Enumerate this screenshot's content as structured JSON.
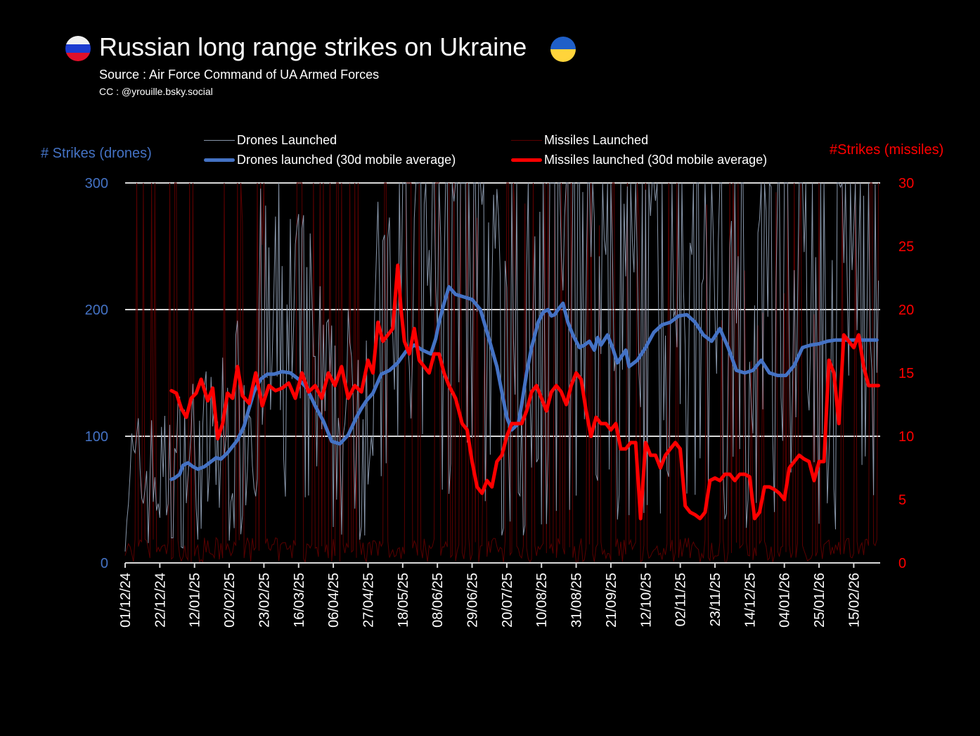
{
  "header": {
    "title": "Russian long range strikes on Ukraine",
    "subtitle": "Source : Air Force Command of UA Armed Forces",
    "credit": "CC : @yrouille.bsky.social",
    "left_flag": "russia-flag-icon",
    "right_flag": "ukraine-flag-icon"
  },
  "chart_data": {
    "type": "line",
    "title": "Russian long range strikes on Ukraine",
    "xlabel": "",
    "ylabel": "# Strikes (drones)",
    "y2label": "#Strikes (missiles)",
    "ylim": [
      0,
      300
    ],
    "y2lim": [
      0,
      30
    ],
    "yticks": [
      "0",
      "100",
      "200",
      "300"
    ],
    "y2ticks": [
      "0",
      "5",
      "10",
      "15",
      "20",
      "25",
      "30"
    ],
    "grid": true,
    "legend_position": "top",
    "colors": {
      "drones_ma": "#4472c4",
      "missiles_ma": "#ff0000",
      "drones_daily": "#8896aa",
      "missiles_daily": "#5a0000",
      "left_axis": "#4472c4",
      "right_axis": "#ff0000"
    },
    "x_tick_labels": [
      "01/12/24",
      "22/12/24",
      "12/01/25",
      "02/02/25",
      "23/02/25",
      "16/03/25",
      "06/04/25",
      "27/04/25",
      "18/05/25",
      "08/06/25",
      "29/06/25",
      "20/07/25",
      "10/08/25",
      "31/08/25",
      "21/09/25",
      "12/10/25",
      "02/11/25",
      "23/11/25",
      "14/12/25",
      "04/01/26",
      "25/01/26",
      "15/02/26"
    ],
    "x_tick_days": [
      0,
      21,
      42,
      63,
      84,
      105,
      126,
      147,
      168,
      189,
      210,
      231,
      252,
      273,
      294,
      315,
      336,
      357,
      378,
      399,
      420,
      441
    ],
    "x_range_days": [
      0,
      457
    ],
    "legend": [
      {
        "name": "Drones Launched",
        "style": "thin"
      },
      {
        "name": "Drones launched (30d mobile average)",
        "style": "thick"
      },
      {
        "name": "Missiles Launched",
        "style": "thin"
      },
      {
        "name": "Missiles launched (30d mobile average)",
        "style": "thick"
      }
    ],
    "series": [
      {
        "name": "Drones launched (30d mobile average)",
        "axis": "left",
        "x": [
          28,
          30,
          33,
          35,
          38,
          41,
          44,
          48,
          52,
          55,
          58,
          62,
          65,
          68,
          72,
          75,
          78,
          82,
          86,
          90,
          95,
          100,
          105,
          110,
          115,
          120,
          125,
          130,
          135,
          140,
          143,
          146,
          150,
          155,
          160,
          165,
          170,
          175,
          180,
          185,
          188,
          190,
          193,
          196,
          200,
          205,
          210,
          215,
          220,
          225,
          228,
          231,
          234,
          238,
          240,
          243,
          246,
          250,
          253,
          256,
          258,
          260,
          262,
          265,
          268,
          271,
          275,
          278,
          281,
          284,
          286,
          288,
          292,
          295,
          298,
          300,
          303,
          305,
          310,
          315,
          320,
          325,
          330,
          335,
          340,
          345,
          350,
          355,
          360,
          365,
          370,
          375,
          380,
          385,
          390,
          395,
          400,
          405,
          410,
          415,
          420,
          425,
          430,
          435,
          440,
          445,
          450,
          455
        ],
        "values": [
          66,
          67,
          70,
          77,
          79,
          76,
          74,
          76,
          80,
          83,
          82,
          87,
          92,
          97,
          108,
          122,
          135,
          145,
          149,
          149,
          151,
          150,
          145,
          138,
          124,
          112,
          96,
          94,
          101,
          115,
          122,
          128,
          134,
          149,
          152,
          158,
          167,
          172,
          168,
          165,
          177,
          190,
          205,
          218,
          212,
          210,
          208,
          200,
          178,
          155,
          135,
          115,
          105,
          110,
          125,
          150,
          170,
          190,
          198,
          200,
          195,
          196,
          200,
          205,
          190,
          180,
          170,
          172,
          175,
          168,
          178,
          172,
          180,
          170,
          158,
          162,
          168,
          155,
          160,
          170,
          182,
          188,
          190,
          195,
          196,
          190,
          180,
          175,
          185,
          170,
          152,
          150,
          152,
          160,
          150,
          148,
          148,
          156,
          170,
          172,
          173,
          175,
          176,
          176,
          176,
          176,
          176,
          176
        ]
      },
      {
        "name": "Missiles launched (30d mobile average)",
        "axis": "right",
        "x": [
          28,
          31,
          34,
          37,
          40,
          43,
          46,
          50,
          53,
          56,
          59,
          62,
          65,
          68,
          71,
          75,
          79,
          83,
          87,
          91,
          95,
          99,
          103,
          107,
          111,
          115,
          119,
          123,
          127,
          131,
          135,
          139,
          143,
          147,
          150,
          153,
          156,
          159,
          162,
          165,
          167,
          169,
          172,
          175,
          178,
          181,
          184,
          187,
          190,
          193,
          196,
          200,
          204,
          207,
          210,
          213,
          216,
          219,
          222,
          225,
          228,
          231,
          234,
          237,
          240,
          243,
          246,
          249,
          252,
          255,
          258,
          261,
          264,
          267,
          270,
          273,
          276,
          279,
          282,
          285,
          288,
          291,
          294,
          297,
          300,
          303,
          306,
          309,
          312,
          315,
          318,
          321,
          324,
          327,
          330,
          333,
          336,
          339,
          342,
          345,
          348,
          351,
          354,
          357,
          360,
          363,
          366,
          369,
          372,
          375,
          378,
          381,
          384,
          387,
          390,
          393,
          396,
          399,
          402,
          405,
          408,
          411,
          414,
          417,
          420,
          423,
          426,
          429,
          432,
          435,
          438,
          441,
          444,
          447,
          450,
          453,
          456
        ],
        "values": [
          13.6,
          13.4,
          12.2,
          11.5,
          13.0,
          13.4,
          14.5,
          12.8,
          13.8,
          9.8,
          11.0,
          13.4,
          13.0,
          15.5,
          13.2,
          12.6,
          15.0,
          12.4,
          14.0,
          13.6,
          13.8,
          14.2,
          13.0,
          15.0,
          13.5,
          14.0,
          13.0,
          15.0,
          14.0,
          15.5,
          13.0,
          14.0,
          13.5,
          16.0,
          15.0,
          19.0,
          17.5,
          18.0,
          18.5,
          23.5,
          20.0,
          17.5,
          16.5,
          18.5,
          16.0,
          15.5,
          15.0,
          16.5,
          16.5,
          15.0,
          14.0,
          13.0,
          11.0,
          10.5,
          8.0,
          6.0,
          5.5,
          6.5,
          6.0,
          8.0,
          8.5,
          10.0,
          11.0,
          11.0,
          11.0,
          12.0,
          13.5,
          14.0,
          13.0,
          12.0,
          13.5,
          14.0,
          13.5,
          12.5,
          14.0,
          15.0,
          14.5,
          12.0,
          10.0,
          11.5,
          11.0,
          11.0,
          10.5,
          11.0,
          9.0,
          9.0,
          9.5,
          9.5,
          3.5,
          9.5,
          8.5,
          8.5,
          7.5,
          8.5,
          9.0,
          9.5,
          9.0,
          4.5,
          4.0,
          3.8,
          3.5,
          4.0,
          6.5,
          6.7,
          6.5,
          7.0,
          7.0,
          6.5,
          7.0,
          7.0,
          6.8,
          3.5,
          4.0,
          6.0,
          6.0,
          5.8,
          5.5,
          5.0,
          7.5,
          8.0,
          8.5,
          8.2,
          8.0,
          6.5,
          8.0,
          8.0,
          16.0,
          15.0,
          11.0,
          18.0,
          17.5,
          17.0,
          18.0,
          15.5,
          14.0,
          14.0,
          14.0
        ]
      },
      {
        "name": "Drones Launched",
        "axis": "left",
        "description": "daily values, highly volatile; range roughly 0-300 (clipped at axis max), frequent spikes to 300 from mid-May 2025 onward"
      },
      {
        "name": "Missiles Launched",
        "axis": "right",
        "description": "daily values, sparse spikes mostly 0-30 (clipped at axis max)"
      }
    ]
  }
}
